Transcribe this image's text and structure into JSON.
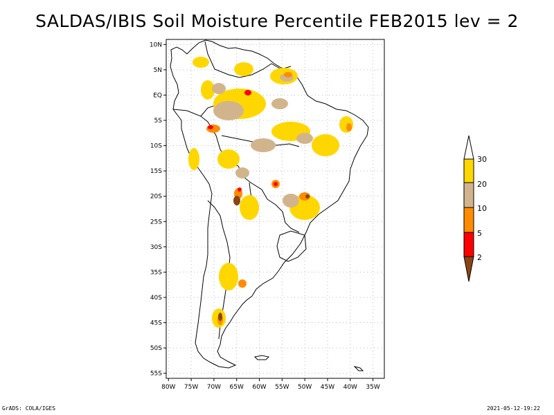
{
  "title": "SALDAS/IBIS Soil Moisture Percentile FEB2015 lev = 2",
  "map": {
    "lat_labels": [
      "10N",
      "5N",
      "EQ",
      "5S",
      "10S",
      "15S",
      "20S",
      "25S",
      "30S",
      "35S",
      "40S",
      "45S",
      "50S",
      "55S"
    ],
    "lat_values": [
      10,
      5,
      0,
      -5,
      -10,
      -15,
      -20,
      -25,
      -30,
      -35,
      -40,
      -45,
      -50,
      -55
    ],
    "lon_labels": [
      "80W",
      "75W",
      "70W",
      "65W",
      "60W",
      "55W",
      "50W",
      "45W",
      "40W",
      "35W"
    ],
    "lon_values": [
      -80,
      -75,
      -70,
      -65,
      -60,
      -55,
      -50,
      -45,
      -40,
      -35
    ],
    "extent": {
      "lon_min": -80.5,
      "lon_max": -32.5,
      "lat_min": -56,
      "lat_max": 11
    }
  },
  "legend": {
    "labels": [
      "30",
      "20",
      "10",
      "5",
      "2"
    ],
    "colors": {
      "above_30": "#ffffff",
      "20_30": "#ffd700",
      "10_20": "#d2b48c",
      "5_10": "#ff8c00",
      "2_5": "#ff0000",
      "below_2": "#8b4513"
    }
  },
  "footer": {
    "left": "GrADS: COLA/IGES",
    "right": "2021-05-12-19:22"
  }
}
